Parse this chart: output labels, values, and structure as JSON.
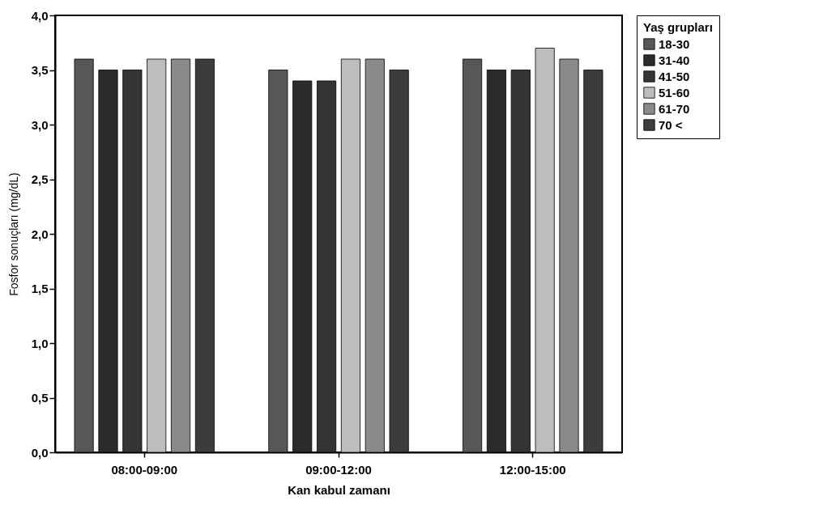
{
  "chart_data": {
    "type": "bar",
    "xlabel": "Kan kabul zamanı",
    "ylabel": "Fosfor sonuçları (mg/dL)",
    "legend_title": "Yaş grupları",
    "categories": [
      "08:00-09:00",
      "09:00-12:00",
      "12:00-15:00"
    ],
    "series": [
      {
        "name": "18-30",
        "color": "#575757",
        "values": [
          3.6,
          3.5,
          3.6
        ]
      },
      {
        "name": "31-40",
        "color": "#2b2b2b",
        "values": [
          3.5,
          3.4,
          3.5
        ]
      },
      {
        "name": "41-50",
        "color": "#353535",
        "values": [
          3.5,
          3.4,
          3.5
        ]
      },
      {
        "name": "51-60",
        "color": "#bdbdbd",
        "values": [
          3.6,
          3.6,
          3.7
        ]
      },
      {
        "name": "61-70",
        "color": "#8a8a8a",
        "values": [
          3.6,
          3.6,
          3.6
        ]
      },
      {
        "name": "70  <",
        "color": "#3c3c3c",
        "values": [
          3.6,
          3.5,
          3.5
        ]
      }
    ],
    "ylim": [
      0,
      4
    ],
    "yticks": [
      {
        "value": 0,
        "label": "0,0"
      },
      {
        "value": 0.5,
        "label": "0,5"
      },
      {
        "value": 1,
        "label": "1,0"
      },
      {
        "value": 1.5,
        "label": "1,5"
      },
      {
        "value": 2,
        "label": "2,0"
      },
      {
        "value": 2.5,
        "label": "2,5"
      },
      {
        "value": 3,
        "label": "3,0"
      },
      {
        "value": 3.5,
        "label": "3,5"
      },
      {
        "value": 4,
        "label": "4,0"
      }
    ],
    "legend": "right",
    "grid": false
  }
}
